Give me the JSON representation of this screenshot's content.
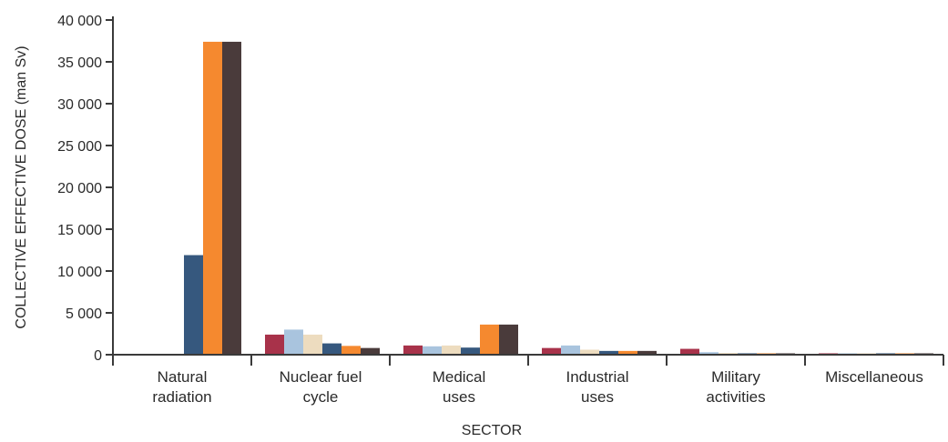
{
  "chart_data": {
    "type": "bar",
    "title": "",
    "xlabel": "SECTOR",
    "ylabel": "COLLECTIVE EFFECTIVE DOSE (man Sv)",
    "ylim": [
      0,
      40000
    ],
    "yticks": [
      0,
      5000,
      10000,
      15000,
      20000,
      25000,
      30000,
      35000,
      40000
    ],
    "ytick_labels": [
      "0",
      "5 000",
      "10 000",
      "15 000",
      "20 000",
      "25 000",
      "30 000",
      "35 000",
      "40 000"
    ],
    "grid": false,
    "categories": [
      [
        "Natural",
        "radiation"
      ],
      [
        "Nuclear fuel",
        "cycle"
      ],
      [
        "Medical",
        "uses"
      ],
      [
        "Industrial",
        "uses"
      ],
      [
        "Military",
        "activities"
      ],
      [
        "Miscellaneous"
      ]
    ],
    "series": [
      {
        "color": "#a8324a",
        "values": [
          0,
          2400,
          1100,
          800,
          700,
          80
        ]
      },
      {
        "color": "#a9c4de",
        "values": [
          0,
          3000,
          1000,
          1100,
          300,
          60
        ]
      },
      {
        "color": "#eddcbf",
        "values": [
          0,
          2400,
          1100,
          600,
          200,
          50
        ]
      },
      {
        "color": "#36587e",
        "values": [
          11900,
          1350,
          850,
          450,
          100,
          40
        ]
      },
      {
        "color": "#f5892f",
        "values": [
          37400,
          1050,
          3600,
          450,
          100,
          40
        ]
      },
      {
        "color": "#4a3b3b",
        "values": [
          37400,
          800,
          3600,
          450,
          100,
          40
        ]
      }
    ]
  }
}
